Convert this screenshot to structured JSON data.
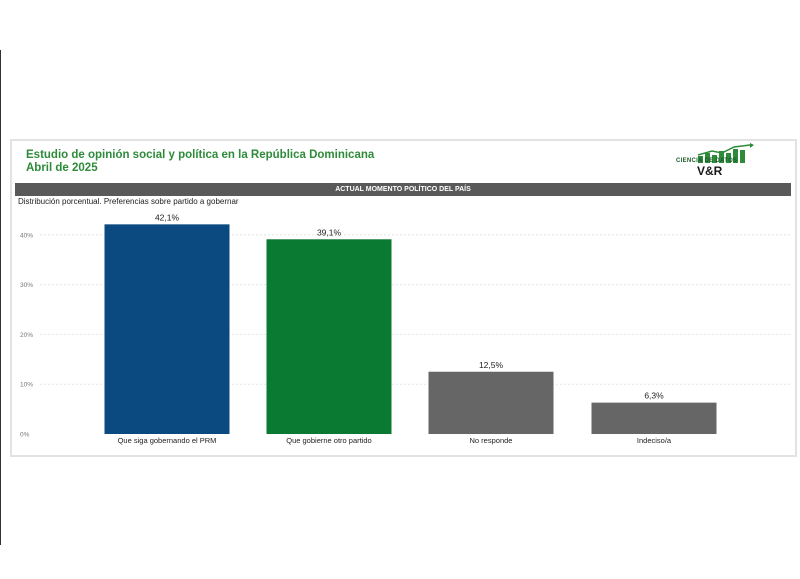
{
  "header": {
    "title_line1": "Estudio de opinión social y política en la República Dominicana",
    "title_line2": "Abril de 2025",
    "banner": "ACTUAL MOMENTO POLÍTICO DEL PAÍS",
    "subtitle": "Distribución porcentual. Preferencias sobre partido a gobernar"
  },
  "logo": {
    "line1": "CIENCIA DE DATOS",
    "line2": "V&R"
  },
  "colors": {
    "title": "#2e8b3a",
    "blue": "#0b4a80",
    "green": "#0a7a32",
    "gray": "#666666"
  },
  "chart_data": {
    "type": "bar",
    "categories": [
      "Que siga gobernando el PRM",
      "Que gobierne otro partido",
      "No responde",
      "Indeciso/a"
    ],
    "values": [
      42.1,
      39.1,
      12.5,
      6.3
    ],
    "data_labels": [
      "42,1%",
      "39,1%",
      "12,5%",
      "6,3%"
    ],
    "bar_colors": [
      "#0b4a80",
      "#0a7a32",
      "#666666",
      "#666666"
    ],
    "yticks": [
      0,
      10,
      20,
      30,
      40
    ],
    "ytick_labels": [
      "0%",
      "10%",
      "20%",
      "30%",
      "40%"
    ],
    "ylim": [
      0,
      45
    ],
    "grid": true,
    "legend": "none"
  }
}
